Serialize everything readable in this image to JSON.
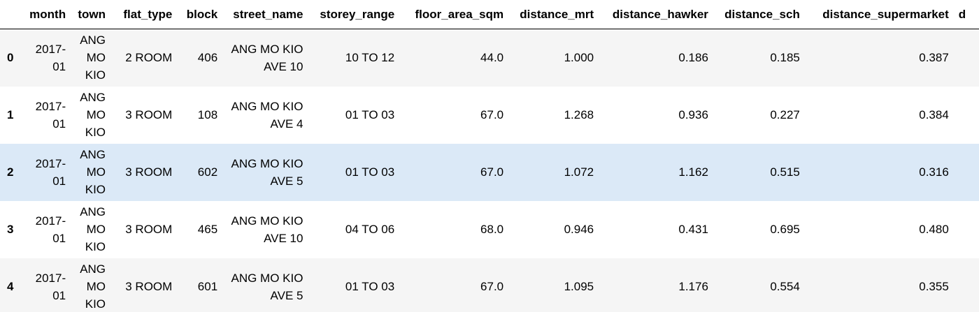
{
  "table": {
    "columns": [
      "",
      "month",
      "town",
      "flat_type",
      "block",
      "street_name",
      "storey_range",
      "floor_area_sqm",
      "distance_mrt",
      "distance_hawker",
      "distance_sch",
      "distance_supermarket",
      "d"
    ],
    "rows": [
      {
        "index": "0",
        "month": "2017-01",
        "town": "ANG MO KIO",
        "flat_type": "2 ROOM",
        "block": "406",
        "street_name": "ANG MO KIO AVE 10",
        "storey_range": "10 TO 12",
        "floor_area_sqm": "44.0",
        "distance_mrt": "1.000",
        "distance_hawker": "0.186",
        "distance_sch": "0.185",
        "distance_supermarket": "0.387"
      },
      {
        "index": "1",
        "month": "2017-01",
        "town": "ANG MO KIO",
        "flat_type": "3 ROOM",
        "block": "108",
        "street_name": "ANG MO KIO AVE 4",
        "storey_range": "01 TO 03",
        "floor_area_sqm": "67.0",
        "distance_mrt": "1.268",
        "distance_hawker": "0.936",
        "distance_sch": "0.227",
        "distance_supermarket": "0.384"
      },
      {
        "index": "2",
        "month": "2017-01",
        "town": "ANG MO KIO",
        "flat_type": "3 ROOM",
        "block": "602",
        "street_name": "ANG MO KIO AVE 5",
        "storey_range": "01 TO 03",
        "floor_area_sqm": "67.0",
        "distance_mrt": "1.072",
        "distance_hawker": "1.162",
        "distance_sch": "0.515",
        "distance_supermarket": "0.316"
      },
      {
        "index": "3",
        "month": "2017-01",
        "town": "ANG MO KIO",
        "flat_type": "3 ROOM",
        "block": "465",
        "street_name": "ANG MO KIO AVE 10",
        "storey_range": "04 TO 06",
        "floor_area_sqm": "68.0",
        "distance_mrt": "0.946",
        "distance_hawker": "0.431",
        "distance_sch": "0.695",
        "distance_supermarket": "0.480"
      },
      {
        "index": "4",
        "month": "2017-01",
        "town": "ANG MO KIO",
        "flat_type": "3 ROOM",
        "block": "601",
        "street_name": "ANG MO KIO AVE 5",
        "storey_range": "01 TO 03",
        "floor_area_sqm": "67.0",
        "distance_mrt": "1.095",
        "distance_hawker": "1.176",
        "distance_sch": "0.554",
        "distance_supermarket": "0.355"
      }
    ]
  },
  "colors": {
    "header_border": "#000000",
    "row_odd": "#f5f5f5",
    "row_even": "#ffffff",
    "row_hover": "#dbe9f7"
  }
}
